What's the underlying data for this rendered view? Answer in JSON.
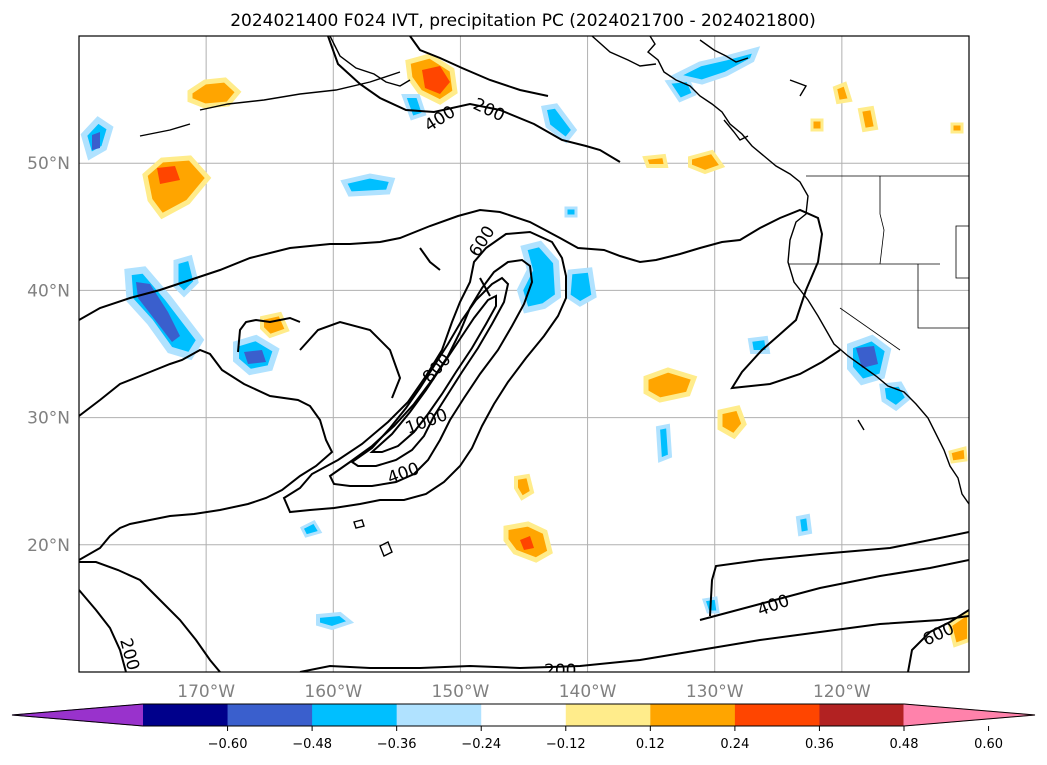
{
  "chart_data": {
    "type": "heatmap",
    "title": "2024021400 F024 IVT, precipitation PC (2024021700 - 2024021800)",
    "map": {
      "lon_range": [
        -180,
        -110
      ],
      "lat_range": [
        10,
        60
      ],
      "grid": true,
      "lat_ticks": [
        "50°N",
        "40°N",
        "30°N",
        "20°N"
      ],
      "lon_ticks": [
        "170°W",
        "160°W",
        "150°W",
        "140°W",
        "130°W",
        "120°W"
      ]
    },
    "contour_labels": [
      {
        "text": "200"
      },
      {
        "text": "400"
      },
      {
        "text": "600"
      },
      {
        "text": "800"
      },
      {
        "text": "1000"
      },
      {
        "text": "400"
      },
      {
        "text": "200"
      },
      {
        "text": "200"
      },
      {
        "text": "400"
      },
      {
        "text": "600"
      }
    ],
    "colorbar": {
      "extend": "both",
      "ticks": [
        "−0.60",
        "−0.48",
        "−0.36",
        "−0.24",
        "−0.12",
        "0.12",
        "0.24",
        "0.36",
        "0.48",
        "0.60"
      ],
      "colors": [
        "#9932cc",
        "#00008b",
        "#3a5fcd",
        "#00bfff",
        "#b0e2ff",
        "#ffffff",
        "#ffec8b",
        "#ffa500",
        "#ff4500",
        "#b22222",
        "#ff82ab"
      ]
    }
  }
}
